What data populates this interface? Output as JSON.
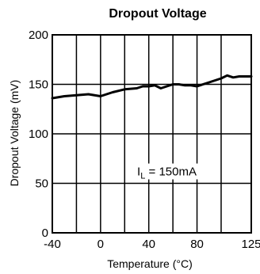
{
  "chart_data": {
    "type": "line",
    "title": "Dropout Voltage",
    "xlabel": "Temperature (°C)",
    "ylabel": "Dropout Voltage (mV)",
    "xlim": [
      -40,
      125
    ],
    "ylim": [
      0,
      200
    ],
    "x_ticks": [
      "-40",
      "0",
      "40",
      "80",
      "125"
    ],
    "y_ticks": [
      "0",
      "50",
      "100",
      "150",
      "200"
    ],
    "x_tick_values": [
      -40,
      0,
      40,
      80,
      125
    ],
    "y_tick_values": [
      0,
      50,
      100,
      150,
      200
    ],
    "x_grid": [
      -40,
      -20,
      0,
      20,
      40,
      60,
      80,
      100,
      125
    ],
    "y_grid": [
      50,
      100,
      150
    ],
    "grid": true,
    "annotation": {
      "prefix": "I",
      "subscript": "L",
      "suffix": " = 150mA",
      "x": 55,
      "y": 58
    },
    "series": [
      {
        "x": [
          -40,
          -30,
          -20,
          -10,
          0,
          10,
          20,
          30,
          35,
          40,
          45,
          50,
          55,
          60,
          65,
          70,
          75,
          80,
          90,
          100,
          105,
          110,
          115,
          125
        ],
        "y": [
          136,
          138,
          139,
          140,
          138,
          142,
          145,
          146,
          148,
          148,
          149,
          146,
          148,
          150,
          150,
          149,
          149,
          148,
          152,
          156,
          159,
          157,
          158,
          158
        ]
      }
    ]
  }
}
